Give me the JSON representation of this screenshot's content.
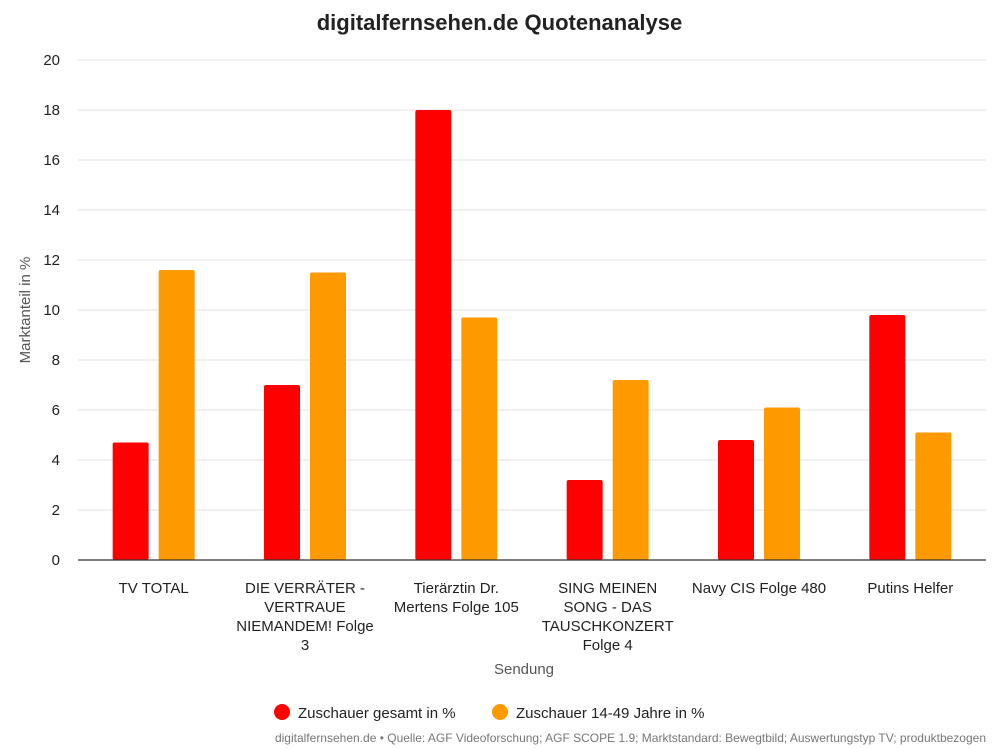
{
  "chart_data": {
    "type": "bar",
    "title": "digitalfernsehen.de Quotenanalyse",
    "xlabel": "Sendung",
    "ylabel": "Marktanteil in %",
    "ylim": [
      0,
      20
    ],
    "yticks": [
      0,
      2,
      4,
      6,
      8,
      10,
      12,
      14,
      16,
      18,
      20
    ],
    "grid": true,
    "legend_position": "bottom",
    "categories": [
      "TV TOTAL",
      "DIE VERRÄTER - VERTRAUE NIEMANDEM! Folge 3",
      "Tierärztin Dr. Mertens Folge 105",
      "SING MEINEN SONG - DAS TAUSCHKONZERT Folge 4",
      "Navy CIS Folge 480",
      "Putins Helfer"
    ],
    "category_lines": [
      [
        "TV TOTAL"
      ],
      [
        "DIE VERRÄTER -",
        "VERTRAUE",
        "NIEMANDEM! Folge",
        "3"
      ],
      [
        "Tierärztin Dr.",
        "Mertens Folge 105"
      ],
      [
        "SING MEINEN",
        "SONG - DAS",
        "TAUSCHKONZERT",
        "Folge 4"
      ],
      [
        "Navy CIS Folge 480"
      ],
      [
        "Putins Helfer"
      ]
    ],
    "series": [
      {
        "name": "Zuschauer gesamt in %",
        "color": "#ff0000",
        "values": [
          4.7,
          7.0,
          18.0,
          3.2,
          4.8,
          9.8
        ]
      },
      {
        "name": "Zuschauer 14-49 Jahre in %",
        "color": "#ff9900",
        "values": [
          11.6,
          11.5,
          9.7,
          7.2,
          6.1,
          5.1
        ]
      }
    ]
  },
  "footer": "digitalfernsehen.de • Quelle: AGF Videoforschung; AGF SCOPE 1.9; Marktstandard: Bewegtbild; Auswertungstyp TV; produktbezogen"
}
